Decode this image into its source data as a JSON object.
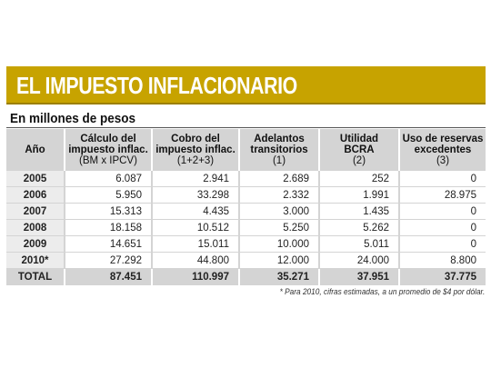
{
  "title": "EL IMPUESTO INFLACIONARIO",
  "subtitle": "En millones de pesos",
  "colors": {
    "banner": "#c7a300",
    "header_bg": "#d4d4d4"
  },
  "chart_data": {
    "type": "table",
    "columns": [
      {
        "line1": "Año",
        "line2": "",
        "line3": ""
      },
      {
        "line1": "Cálculo del",
        "line2": "impuesto inflac.",
        "line3": "(BM x IPCV)"
      },
      {
        "line1": "Cobro del",
        "line2": "impuesto inflac.",
        "line3": "(1+2+3)"
      },
      {
        "line1": "Adelantos",
        "line2": "transitorios",
        "line3": "(1)"
      },
      {
        "line1": "Utilidad",
        "line2": "BCRA",
        "line3": "(2)"
      },
      {
        "line1": "Uso de reservas",
        "line2": "excedentes",
        "line3": "(3)"
      }
    ],
    "rows": [
      [
        "2005",
        "6.087",
        "2.941",
        "2.689",
        "252",
        "0"
      ],
      [
        "2006",
        "5.950",
        "33.298",
        "2.332",
        "1.991",
        "28.975"
      ],
      [
        "2007",
        "15.313",
        "4.435",
        "3.000",
        "1.435",
        "0"
      ],
      [
        "2008",
        "18.158",
        "10.512",
        "5.250",
        "5.262",
        "0"
      ],
      [
        "2009",
        "14.651",
        "15.011",
        "10.000",
        "5.011",
        "0"
      ],
      [
        "2010*",
        "27.292",
        "44.800",
        "12.000",
        "24.000",
        "8.800"
      ]
    ],
    "total": [
      "TOTAL",
      "87.451",
      "110.997",
      "35.271",
      "37.951",
      "37.775"
    ]
  },
  "footnote": "* Para 2010, cifras estimadas, a un promedio de $4 por dólar."
}
